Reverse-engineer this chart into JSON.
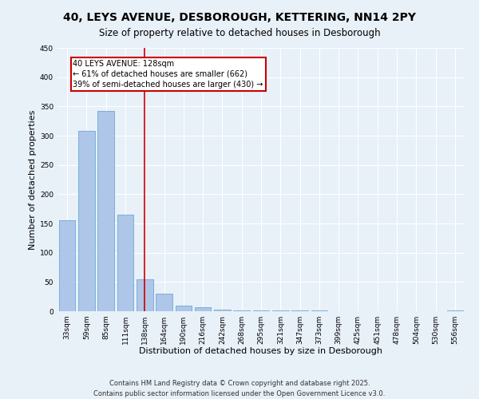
{
  "title": "40, LEYS AVENUE, DESBOROUGH, KETTERING, NN14 2PY",
  "subtitle": "Size of property relative to detached houses in Desborough",
  "xlabel": "Distribution of detached houses by size in Desborough",
  "ylabel": "Number of detached properties",
  "categories": [
    "33sqm",
    "59sqm",
    "85sqm",
    "111sqm",
    "138sqm",
    "164sqm",
    "190sqm",
    "216sqm",
    "242sqm",
    "268sqm",
    "295sqm",
    "321sqm",
    "347sqm",
    "373sqm",
    "399sqm",
    "425sqm",
    "451sqm",
    "478sqm",
    "504sqm",
    "530sqm",
    "556sqm"
  ],
  "values": [
    155,
    308,
    342,
    165,
    55,
    30,
    10,
    7,
    3,
    2,
    2,
    1,
    1,
    1,
    0,
    0,
    0,
    0,
    0,
    0,
    1
  ],
  "bar_color": "#aec6e8",
  "bar_edge_color": "#5a9fd4",
  "property_label": "40 LEYS AVENUE: 128sqm",
  "annotation_line1": "← 61% of detached houses are smaller (662)",
  "annotation_line2": "39% of semi-detached houses are larger (430) →",
  "vline_color": "#cc0000",
  "vline_x_index": 4.0,
  "annotation_box_color": "#cc0000",
  "background_color": "#e8f0f8",
  "grid_color": "#ffffff",
  "footer_line1": "Contains HM Land Registry data © Crown copyright and database right 2025.",
  "footer_line2": "Contains public sector information licensed under the Open Government Licence v3.0.",
  "ylim": [
    0,
    450
  ],
  "title_fontsize": 10,
  "subtitle_fontsize": 8.5,
  "xlabel_fontsize": 8,
  "ylabel_fontsize": 8,
  "tick_fontsize": 6.5,
  "footer_fontsize": 6,
  "annot_fontsize": 7
}
